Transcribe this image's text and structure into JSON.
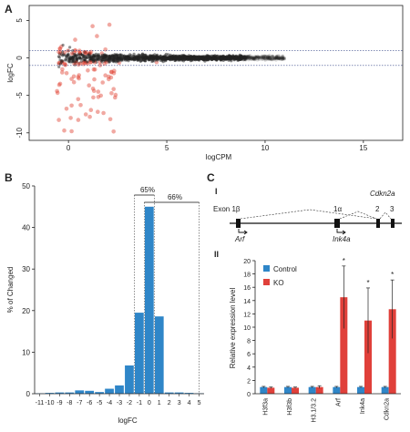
{
  "panel_labels": {
    "a": "A",
    "b": "B",
    "c": "C"
  },
  "sub_labels": {
    "c1": "I",
    "c2": "II"
  },
  "gene_diagram": {
    "gene_name": "Cdkn2a",
    "exon_label": "Exon 1β",
    "exon_1a": "1α",
    "exon_2": "2",
    "exon_3": "3",
    "transcript_1": "Arf",
    "transcript_2": "Ink4a"
  },
  "chart_data": [
    {
      "type": "scatter",
      "title": "",
      "xlabel": "logCPM",
      "ylabel": "logFC",
      "xlim": [
        -2,
        17
      ],
      "ylim": [
        -11,
        7
      ],
      "x_ticks": [
        0,
        5,
        10,
        15
      ],
      "y_ticks": [
        -10,
        -5,
        0,
        5
      ],
      "thresholds": [
        1,
        -1
      ],
      "series": [
        {
          "color": "#e04030",
          "description_points": "significant genes, spread around logFC 0, wider at low logCPM"
        },
        {
          "color": "#222222",
          "description_points": "non-significant genes near logFC 0"
        }
      ]
    },
    {
      "type": "bar",
      "xlabel": "logFC",
      "ylabel": "% of Changed",
      "categories": [
        "-11",
        "-10",
        "-9",
        "-8",
        "-7",
        "-6",
        "-5",
        "-4",
        "-3",
        "-2",
        "-1",
        "0",
        "1",
        "2",
        "3",
        "4",
        "5"
      ],
      "values": [
        0.1,
        0.2,
        0.3,
        0.3,
        0.8,
        0.7,
        0.4,
        1.2,
        2.0,
        6.8,
        19.5,
        45.0,
        18.6,
        0.3,
        0.3,
        0.2,
        0.1
      ],
      "ylim": [
        0,
        50
      ],
      "y_ticks": [
        0,
        10,
        20,
        30,
        40,
        50
      ],
      "bar_color": "#2f86c8",
      "annotations": [
        "65%",
        "66%"
      ]
    },
    {
      "type": "bar",
      "xlabel": "",
      "ylabel": "Relative expression level",
      "categories": [
        "H3f3a",
        "H3f3b",
        "H3.1/3.2",
        "Arf",
        "Ink4a",
        "Cdkn2a"
      ],
      "series": [
        {
          "name": "Control",
          "color": "#2f86c8",
          "values": [
            1.0,
            1.0,
            1.0,
            1.0,
            1.0,
            1.0
          ],
          "errors": [
            0.1,
            0.1,
            0.1,
            0.1,
            0.1,
            0.1
          ]
        },
        {
          "name": "KO",
          "color": "#e0403a",
          "values": [
            0.9,
            0.9,
            1.0,
            14.5,
            11.0,
            12.7
          ],
          "errors": [
            0.1,
            0.1,
            0.2,
            4.7,
            4.9,
            4.4
          ]
        }
      ],
      "significance": [
        false,
        false,
        false,
        true,
        true,
        true
      ],
      "star": "*",
      "ylim": [
        0,
        20
      ],
      "y_ticks": [
        0,
        2,
        4,
        6,
        8,
        10,
        12,
        14,
        16,
        18,
        20
      ]
    }
  ]
}
